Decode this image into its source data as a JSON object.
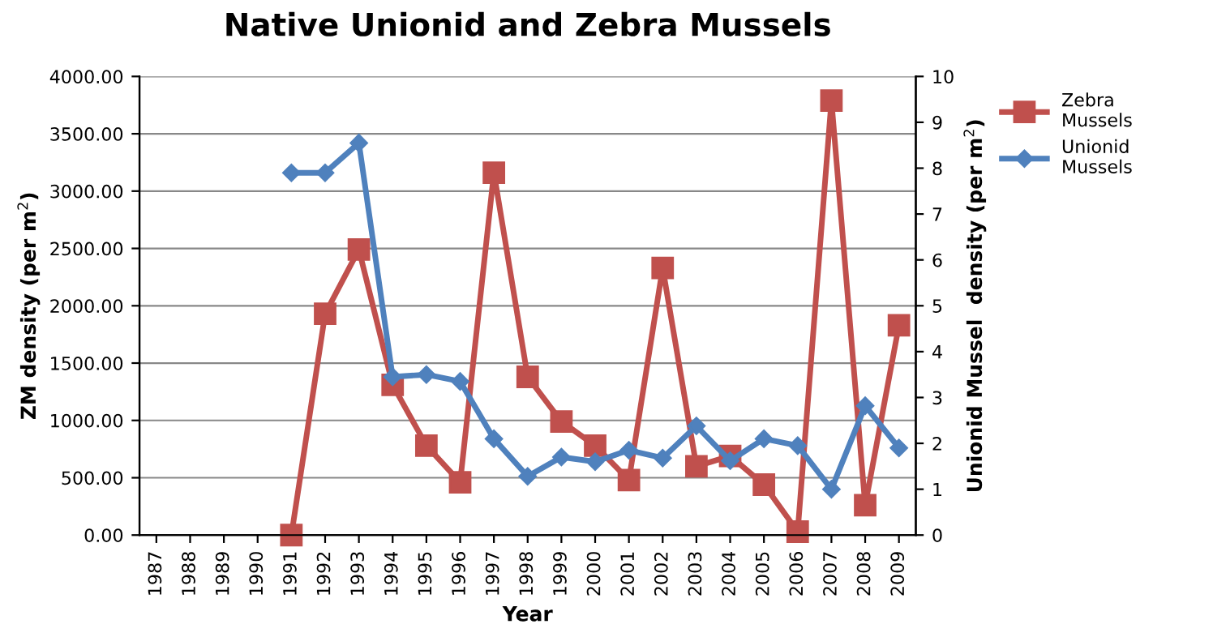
{
  "chart_data": {
    "type": "line",
    "title": "Native Unionid and Zebra Mussels",
    "xlabel": "Year",
    "ylabel": "ZM density (per m$^{2}$)",
    "y2label": "Unionid Mussel  density (per m$^{2}$)",
    "categories": [
      "1987",
      "1988",
      "1989",
      "1990",
      "1991",
      "1992",
      "1993",
      "1994",
      "1995",
      "1996",
      "1997",
      "1998",
      "1999",
      "2000",
      "2001",
      "2002",
      "2003",
      "2004",
      "2005",
      "2006",
      "2007",
      "2008",
      "2009"
    ],
    "series": [
      {
        "name": "Zebra Mussels",
        "color": "#c0504d",
        "marker": "square",
        "values": [
          null,
          null,
          null,
          null,
          0,
          1930,
          2490,
          1310,
          780,
          460,
          3160,
          1380,
          990,
          780,
          480,
          2330,
          600,
          690,
          440,
          30,
          3790,
          260,
          1830
        ]
      },
      {
        "name": "Unionid Mussels",
        "color": "#4f81bd",
        "marker": "diamond",
        "axis": "y2",
        "values": [
          null,
          null,
          null,
          null,
          7.9,
          7.9,
          8.55,
          3.45,
          3.5,
          3.35,
          2.1,
          1.28,
          1.7,
          1.6,
          1.85,
          1.68,
          2.38,
          1.62,
          2.1,
          1.95,
          1.0,
          2.82,
          1.9
        ]
      }
    ],
    "ylim": [
      0,
      4000
    ],
    "yticks": [
      {
        "value": 0,
        "label": "0.00"
      },
      {
        "value": 500,
        "label": "500.00"
      },
      {
        "value": 1000,
        "label": "1000.00"
      },
      {
        "value": 1500,
        "label": "1500.00"
      },
      {
        "value": 2000,
        "label": "2000.00"
      },
      {
        "value": 2500,
        "label": "2500.00"
      },
      {
        "value": 3000,
        "label": "3000.00"
      },
      {
        "value": 3500,
        "label": "3500.00"
      },
      {
        "value": 4000,
        "label": "4000.00"
      }
    ],
    "y2lim": [
      0,
      10
    ],
    "y2ticks": [
      0,
      1,
      2,
      3,
      4,
      5,
      6,
      7,
      8,
      9,
      10
    ],
    "grid": "y",
    "legend": "right",
    "line_style": "solid"
  }
}
